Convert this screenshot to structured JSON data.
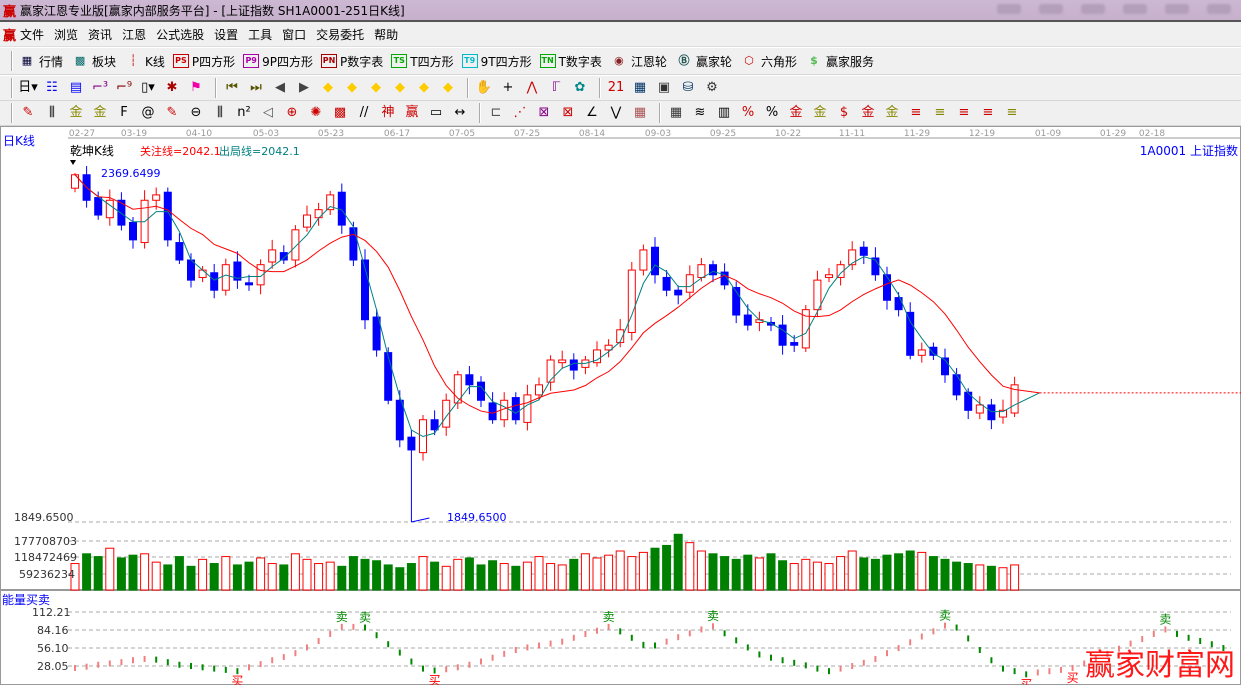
{
  "window": {
    "title": "赢家江恩专业版[赢家内部服务平台] - [上证指数  SH1A0001-251日K线]",
    "logo": "赢"
  },
  "menu": {
    "logo": "赢",
    "items": [
      "文件",
      "浏览",
      "资讯",
      "江恩",
      "公式选股",
      "设置",
      "工具",
      "窗口",
      "交易委托",
      "帮助"
    ]
  },
  "toolbar1": [
    {
      "icon": "quote-table-icon",
      "glyph": "▦",
      "color": "#003",
      "label": "行情"
    },
    {
      "icon": "sector-grid-icon",
      "glyph": "▩",
      "color": "#066",
      "label": "板块"
    },
    {
      "icon": "candlestick-icon",
      "glyph": "┆",
      "color": "#c00",
      "label": "K线"
    },
    {
      "icon": "ps-box-icon",
      "glyph": "PS",
      "color": "#c00",
      "label": "P四方形"
    },
    {
      "icon": "p9-box-icon",
      "glyph": "P9",
      "color": "#a0a",
      "label": "9P四方形"
    },
    {
      "icon": "pn-box-icon",
      "glyph": "PN",
      "color": "#a00",
      "label": "P数字表"
    },
    {
      "icon": "ts-box-icon",
      "glyph": "TS",
      "color": "#0a0",
      "label": "T四方形"
    },
    {
      "icon": "t9-box-icon",
      "glyph": "T9",
      "color": "#0bc",
      "label": "9T四方形"
    },
    {
      "icon": "tn-box-icon",
      "glyph": "TN",
      "color": "#0a0",
      "label": "T数字表"
    },
    {
      "icon": "gann-wheel-icon",
      "glyph": "◉",
      "color": "#822",
      "label": "江恩轮"
    },
    {
      "icon": "big-wheel-icon",
      "glyph": "Ⓑ",
      "color": "#255",
      "label": "赢家轮"
    },
    {
      "icon": "hexagon-icon",
      "glyph": "⬡",
      "color": "#c00",
      "label": "六角形"
    },
    {
      "icon": "dollar-icon",
      "glyph": "$",
      "color": "#5b5",
      "label": "赢家服务"
    }
  ],
  "toolbar2": [
    {
      "icon": "period-day-dropdown",
      "glyph": "日▾",
      "color": "#000"
    },
    {
      "icon": "chart-style-icon",
      "glyph": "☷",
      "color": "#00f"
    },
    {
      "icon": "clipboard-icon",
      "glyph": "▤",
      "color": "#00f"
    },
    {
      "icon": "staircase-3-icon",
      "glyph": "⌐³",
      "color": "#808"
    },
    {
      "icon": "staircase-9-icon",
      "glyph": "⌐⁹",
      "color": "#800"
    },
    {
      "icon": "candle-type-dropdown",
      "glyph": "▯▾",
      "color": "#000"
    },
    {
      "icon": "map-icon",
      "glyph": "✱",
      "color": "#a00"
    },
    {
      "icon": "flag-icon",
      "glyph": "⚑",
      "color": "#e0a"
    },
    {
      "icon": "first-bar-icon",
      "glyph": "⏮",
      "color": "#550"
    },
    {
      "icon": "last-bar-icon",
      "glyph": "⏭",
      "color": "#550"
    },
    {
      "icon": "scroll-left-icon",
      "glyph": "◀",
      "color": "#444"
    },
    {
      "icon": "scroll-right-icon",
      "glyph": "▶",
      "color": "#444"
    },
    {
      "icon": "left-arrow-diamond-icon",
      "glyph": "◆",
      "color": "#fc0"
    },
    {
      "icon": "right-arrow-diamond-icon",
      "glyph": "◆",
      "color": "#fc0"
    },
    {
      "icon": "expand-h-diamond-icon",
      "glyph": "◆",
      "color": "#fc0"
    },
    {
      "icon": "shrink-h-diamond-icon",
      "glyph": "◆",
      "color": "#fc0"
    },
    {
      "icon": "expand-v-diamond-icon",
      "glyph": "◆",
      "color": "#fc0"
    },
    {
      "icon": "shrink-v-diamond-icon",
      "glyph": "◆",
      "color": "#fc0"
    },
    {
      "icon": "hand-icon",
      "glyph": "✋",
      "color": "#000"
    },
    {
      "icon": "crosshair-icon",
      "glyph": "+",
      "color": "#000"
    },
    {
      "icon": "line-point-icon",
      "glyph": "⋀",
      "color": "#c00"
    },
    {
      "icon": "formula-icon",
      "glyph": "ℾ",
      "color": "#808"
    },
    {
      "icon": "indicator-icon",
      "glyph": "✿",
      "color": "#088"
    },
    {
      "icon": "calendar-icon",
      "glyph": "21",
      "color": "#c00"
    },
    {
      "icon": "calculator-icon",
      "glyph": "▦",
      "color": "#036"
    },
    {
      "icon": "book-icon",
      "glyph": "▣",
      "color": "#333"
    },
    {
      "icon": "network-icon",
      "glyph": "⛁",
      "color": "#036"
    },
    {
      "icon": "tools-icon",
      "glyph": "⚙",
      "color": "#333"
    }
  ],
  "toolbar3": [
    {
      "icon": "pen-icon",
      "glyph": "✎",
      "color": "#c00"
    },
    {
      "icon": "gann-lines-icon",
      "glyph": "⫼",
      "color": "#000"
    },
    {
      "icon": "gold-lines-icon",
      "glyph": "金",
      "color": "#880"
    },
    {
      "icon": "gold-lines-2-icon",
      "glyph": "金",
      "color": "#880"
    },
    {
      "icon": "fibonacci-icon",
      "glyph": "F",
      "color": "#000"
    },
    {
      "icon": "spiral-icon",
      "glyph": "@",
      "color": "#000"
    },
    {
      "icon": "pen-ruler-icon",
      "glyph": "✎",
      "color": "#c00"
    },
    {
      "icon": "circle-lines-icon",
      "glyph": "⊖",
      "color": "#000"
    },
    {
      "icon": "parallel-lines-icon",
      "glyph": "⫼",
      "color": "#000"
    },
    {
      "icon": "square-lines-icon",
      "glyph": "n²",
      "color": "#000"
    },
    {
      "icon": "triangle-icon",
      "glyph": "◁",
      "color": "#555"
    },
    {
      "icon": "circle-cross-icon",
      "glyph": "⊕",
      "color": "#c00"
    },
    {
      "icon": "web-icon",
      "glyph": "✺",
      "color": "#c00"
    },
    {
      "icon": "square-web-icon",
      "glyph": "▩",
      "color": "#c00"
    },
    {
      "icon": "angle-lines-icon",
      "glyph": "//",
      "color": "#000"
    },
    {
      "icon": "shen-lines-icon",
      "glyph": "神",
      "color": "#c00"
    },
    {
      "icon": "ying-lines-icon",
      "glyph": "赢",
      "color": "#c00"
    },
    {
      "icon": "ruler-icon",
      "glyph": "▭",
      "color": "#000"
    },
    {
      "icon": "width-icon",
      "glyph": "↔",
      "color": "#000"
    },
    {
      "icon": "box-icon",
      "glyph": "⊏",
      "color": "#555"
    },
    {
      "icon": "fan-icon",
      "glyph": "⋰",
      "color": "#c00"
    },
    {
      "icon": "gann-box-icon",
      "glyph": "⊠",
      "color": "#808"
    },
    {
      "icon": "gann-fan-icon",
      "glyph": "⊠",
      "color": "#c00"
    },
    {
      "icon": "angle-icon",
      "glyph": "∠",
      "color": "#000"
    },
    {
      "icon": "wave-icon",
      "glyph": "⋁",
      "color": "#000"
    },
    {
      "icon": "grid-icon",
      "glyph": "▦",
      "color": "#a55"
    },
    {
      "icon": "grid-2-icon",
      "glyph": "▦",
      "color": "#333"
    },
    {
      "icon": "parallel-2-icon",
      "glyph": "≋",
      "color": "#000"
    },
    {
      "icon": "table-icon",
      "glyph": "▥",
      "color": "#000"
    },
    {
      "icon": "percent-line-icon",
      "glyph": "%",
      "color": "#c00"
    },
    {
      "icon": "percent-icon",
      "glyph": "%",
      "color": "#000"
    },
    {
      "icon": "gold-1-icon",
      "glyph": "金",
      "color": "#c00"
    },
    {
      "icon": "gold-2-icon",
      "glyph": "金",
      "color": "#880"
    },
    {
      "icon": "dollar-line-icon",
      "glyph": "$",
      "color": "#c00"
    },
    {
      "icon": "gold-3-icon",
      "glyph": "金",
      "color": "#c00"
    },
    {
      "icon": "gold-4-icon",
      "glyph": "金",
      "color": "#880"
    },
    {
      "icon": "levels-icon",
      "glyph": "≡",
      "color": "#c00"
    },
    {
      "icon": "levels-2-icon",
      "glyph": "≡",
      "color": "#880"
    },
    {
      "icon": "levels-3-icon",
      "glyph": "≡",
      "color": "#c00"
    },
    {
      "icon": "levels-4-icon",
      "glyph": "≡",
      "color": "#c00"
    },
    {
      "icon": "levels-5-icon",
      "glyph": "≡",
      "color": "#880"
    }
  ],
  "chart": {
    "period_label": "日K线",
    "indicator_name": "乾坤K线",
    "focus_line": "关注线=2042.1",
    "exit_line": "出局线=2042.1",
    "symbol": "1A0001  上证指数",
    "dates": [
      "02-27",
      "03-19",
      "04-10",
      "05-03",
      "05-23",
      "06-17",
      "07-05",
      "07-25",
      "08-14",
      "09-03",
      "09-25",
      "10-22",
      "11-11",
      "11-29",
      "12-19",
      "01-09",
      "01-29",
      "02-18"
    ],
    "colors": {
      "up": "#ff0000",
      "down": "#0000ff",
      "ma_short": "#008080",
      "ma_long": "#ff0000",
      "vol_down": "#008000"
    }
  },
  "chart_data": [
    {
      "type": "candlestick",
      "title": "乾坤K线",
      "closes": [
        2367,
        2329,
        2307,
        2329,
        2292,
        2270,
        2329,
        2337,
        2270,
        2240,
        2210,
        2225,
        2195,
        2233,
        2210,
        2203,
        2233,
        2255,
        2240,
        2285,
        2307,
        2315,
        2337,
        2292,
        2240,
        2151,
        2106,
        2031,
        1972,
        1957,
        2002,
        1987,
        2031,
        2069,
        2054,
        2031,
        2002,
        2031,
        2002,
        2039,
        2054,
        2091,
        2091,
        2076,
        2091,
        2106,
        2113,
        2136,
        2225,
        2255,
        2218,
        2195,
        2188,
        2218,
        2233,
        2218,
        2203,
        2158,
        2143,
        2151,
        2143,
        2113,
        2113,
        2166,
        2210,
        2218,
        2233,
        2255,
        2247,
        2218,
        2180,
        2166,
        2098,
        2106,
        2098,
        2069,
        2039,
        2016,
        2024,
        2002,
        2016,
        2054
      ],
      "high_label": "2369.6499",
      "low_label": "1849.6500",
      "focus_line_value": 2042.1,
      "y_axis_label": "1849.6500"
    },
    {
      "type": "bar",
      "title": "",
      "y_ticks": [
        "177708703",
        "118472469",
        "59236234"
      ],
      "values": [
        95,
        130,
        120,
        150,
        115,
        125,
        130,
        100,
        90,
        120,
        85,
        110,
        95,
        120,
        90,
        100,
        115,
        95,
        90,
        130,
        110,
        95,
        100,
        85,
        120,
        110,
        105,
        90,
        80,
        95,
        120,
        100,
        85,
        110,
        115,
        90,
        105,
        95,
        85,
        100,
        120,
        95,
        90,
        110,
        130,
        115,
        125,
        140,
        120,
        135,
        150,
        160,
        200,
        170,
        140,
        130,
        120,
        110,
        125,
        115,
        130,
        105,
        95,
        110,
        100,
        95,
        120,
        140,
        115,
        110,
        125,
        130,
        140,
        135,
        120,
        110,
        100,
        95,
        90,
        85,
        80,
        90,
        85,
        80,
        75,
        80,
        85,
        70,
        90
      ],
      "unit_multiplier": 1000000
    },
    {
      "type": "line",
      "title": "能量买卖",
      "y_ticks": [
        "112.21",
        "84.16",
        "56.10",
        "28.05"
      ],
      "values": [
        25,
        27,
        30,
        32,
        34,
        37,
        39,
        38,
        34,
        30,
        28,
        26,
        24,
        22,
        20,
        26,
        31,
        37,
        42,
        48,
        57,
        67,
        78,
        89,
        89,
        88,
        76,
        62,
        49,
        35,
        24,
        21,
        23,
        26,
        30,
        35,
        41,
        47,
        53,
        57,
        60,
        63,
        66,
        72,
        78,
        83,
        89,
        82,
        72,
        61,
        60,
        66,
        73,
        79,
        85,
        90,
        79,
        68,
        57,
        46,
        41,
        37,
        33,
        29,
        24,
        20,
        24,
        28,
        33,
        39,
        48,
        56,
        65,
        74,
        82,
        91,
        88,
        71,
        53,
        37,
        24,
        20,
        15,
        18,
        20,
        22,
        25,
        32,
        40,
        47,
        55,
        63,
        70,
        78,
        85,
        78,
        72,
        67,
        62,
        56
      ],
      "sell_label": "卖",
      "buy_label": "买",
      "sell_at": [
        23,
        25,
        46,
        55,
        75,
        94
      ],
      "buy_at": [
        14,
        31,
        82,
        86
      ]
    }
  ],
  "watermark": "赢家财富网"
}
